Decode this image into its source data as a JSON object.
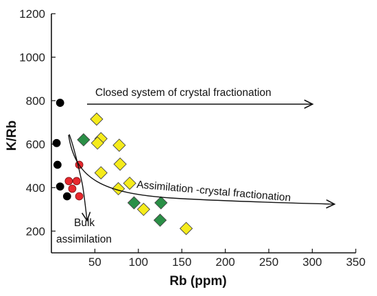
{
  "chart_data": {
    "type": "scatter",
    "title": "",
    "xlabel": "Rb (ppm)",
    "ylabel": "K/Rb",
    "xlim": [
      0,
      350
    ],
    "ylim": [
      100,
      1200
    ],
    "x_ticks": [
      50,
      100,
      150,
      200,
      250,
      300,
      350
    ],
    "y_ticks": [
      200,
      400,
      600,
      800,
      1000,
      1200
    ],
    "grid": false,
    "legend": "none",
    "series": [
      {
        "marker": "circle",
        "color": "#000000",
        "points": [
          [
            10,
            790
          ],
          [
            6,
            605
          ],
          [
            7,
            505
          ],
          [
            10,
            405
          ],
          [
            18,
            360
          ]
        ]
      },
      {
        "marker": "circle",
        "color": "#e8282e",
        "points": [
          [
            32,
            505
          ],
          [
            20,
            430
          ],
          [
            29,
            430
          ],
          [
            24,
            395
          ],
          [
            32,
            360
          ]
        ]
      },
      {
        "marker": "diamond",
        "color": "#2a8f46",
        "points": [
          [
            37,
            620
          ],
          [
            95,
            330
          ],
          [
            126,
            330
          ],
          [
            125,
            250
          ]
        ]
      },
      {
        "marker": "diamond",
        "color": "#f5eb1b",
        "points": [
          [
            52,
            715
          ],
          [
            57,
            625
          ],
          [
            53,
            605
          ],
          [
            78,
            595
          ],
          [
            57,
            468
          ],
          [
            79,
            508
          ],
          [
            90,
            420
          ],
          [
            77,
            395
          ],
          [
            106,
            300
          ],
          [
            155,
            212
          ]
        ]
      }
    ],
    "annotations": [
      {
        "label": "Closed system of crystal fractionation"
      },
      {
        "label": "Assimilation -crystal fractionation"
      },
      {
        "label_lines": [
          "Bulk",
          "assimilation"
        ]
      }
    ]
  }
}
